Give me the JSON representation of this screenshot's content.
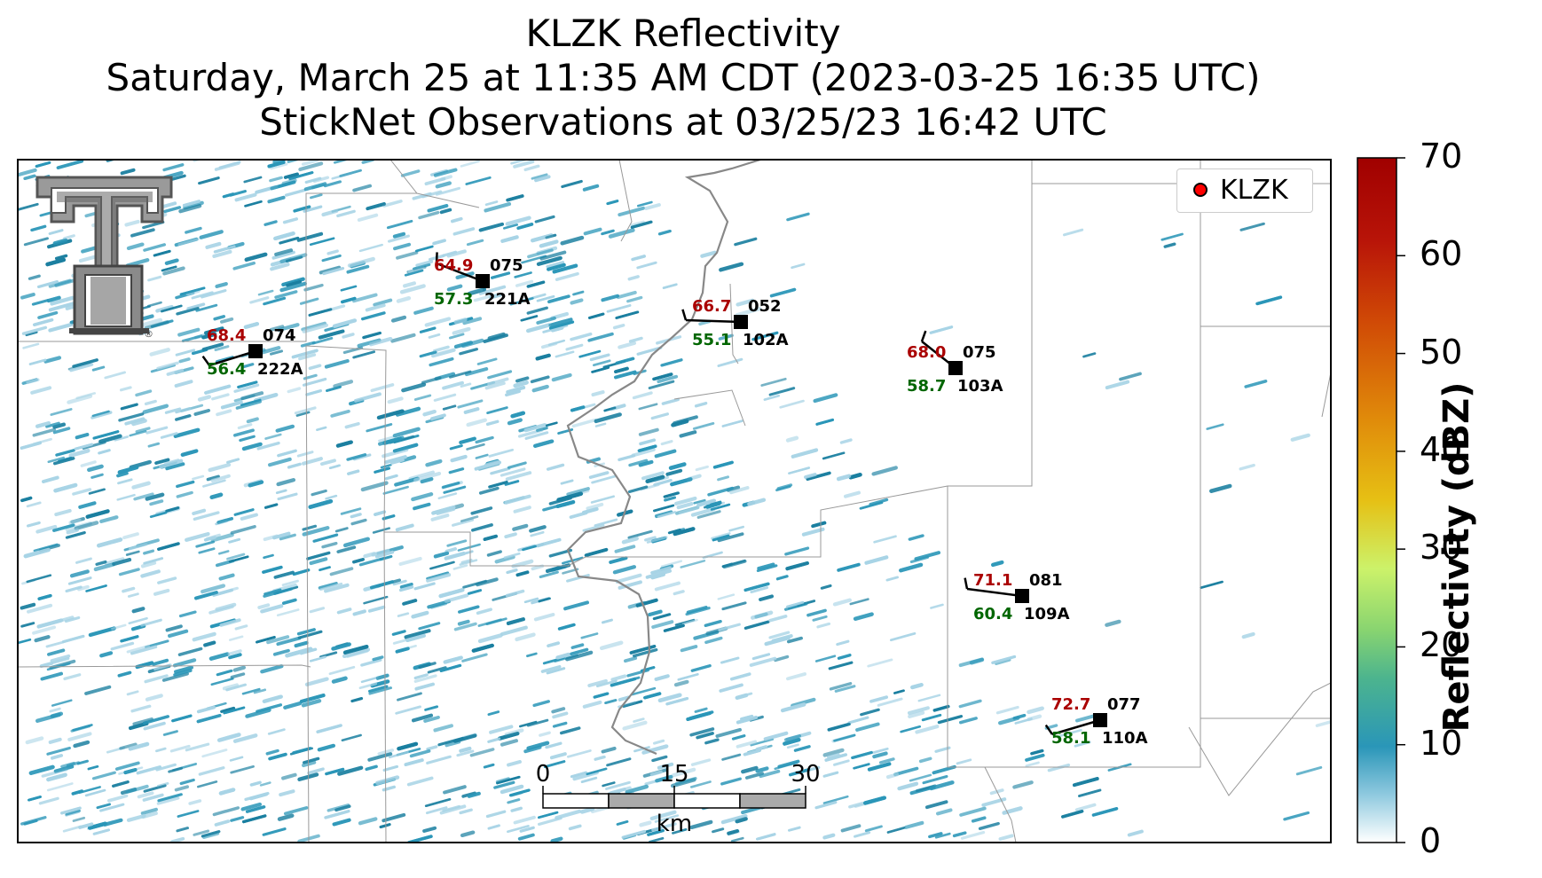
{
  "title": {
    "line1": "KLZK Reflectivity",
    "line2": "Saturday, March 25 at 11:35 AM CDT (2023-03-25 16:35 UTC)",
    "line3": "StickNet Observations at 03/25/23 16:42 UTC"
  },
  "colorbar": {
    "label": "Reflectivity (dBZ)",
    "range": [
      0,
      70
    ],
    "ticks": [
      "0",
      "10",
      "20",
      "30",
      "40",
      "50",
      "60",
      "70"
    ],
    "colors": [
      "#ffffff",
      "#2a96b8",
      "#5cc26a",
      "#ccf26a",
      "#e6c014",
      "#e06c08",
      "#c02808",
      "#a00000"
    ]
  },
  "legend": {
    "label": "KLZK",
    "marker_color": "#ff0000"
  },
  "logo": {
    "name": "Texas Tech Double T",
    "registered_mark": "®"
  },
  "scalebar": {
    "ticks": [
      "0",
      "15",
      "30"
    ],
    "unit": "km"
  },
  "stations": [
    {
      "id": "222A",
      "temperature": "68.4",
      "dewpoint": "56.4",
      "pressure": "074"
    },
    {
      "id": "221A",
      "temperature": "64.9",
      "dewpoint": "57.3",
      "pressure": "075"
    },
    {
      "id": "102A",
      "temperature": "66.7",
      "dewpoint": "55.1",
      "pressure": "052"
    },
    {
      "id": "103A",
      "temperature": "68.0",
      "dewpoint": "58.7",
      "pressure": "075"
    },
    {
      "id": "109A",
      "temperature": "71.1",
      "dewpoint": "60.4",
      "pressure": "081"
    },
    {
      "id": "110A",
      "temperature": "72.7",
      "dewpoint": "58.1",
      "pressure": "077"
    }
  ],
  "colors": {
    "temperature": "#aa0000",
    "dewpoint": "#006600",
    "station_text": "#000000",
    "echo_light": "#a8d4e6",
    "echo_mid": "#2a96b8",
    "echo_dark": "#1a7fa0",
    "boundary": "#999999",
    "river": "#888888"
  }
}
